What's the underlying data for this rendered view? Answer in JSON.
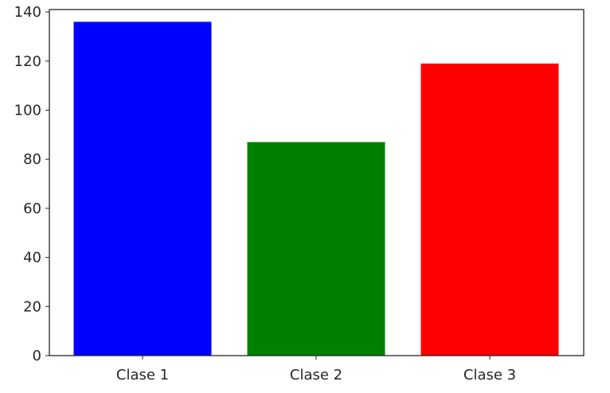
{
  "chart_data": {
    "type": "bar",
    "title": "",
    "xlabel": "",
    "ylabel": "",
    "categories": [
      "Clase 1",
      "Clase 2",
      "Clase 3"
    ],
    "values": [
      136,
      87,
      119
    ],
    "colors": [
      "#0000ff",
      "#008000",
      "#ff0000"
    ],
    "ylim": [
      0,
      141
    ],
    "yticks": [
      0,
      20,
      40,
      60,
      80,
      100,
      120,
      140
    ],
    "grid": false,
    "legend": "none"
  }
}
